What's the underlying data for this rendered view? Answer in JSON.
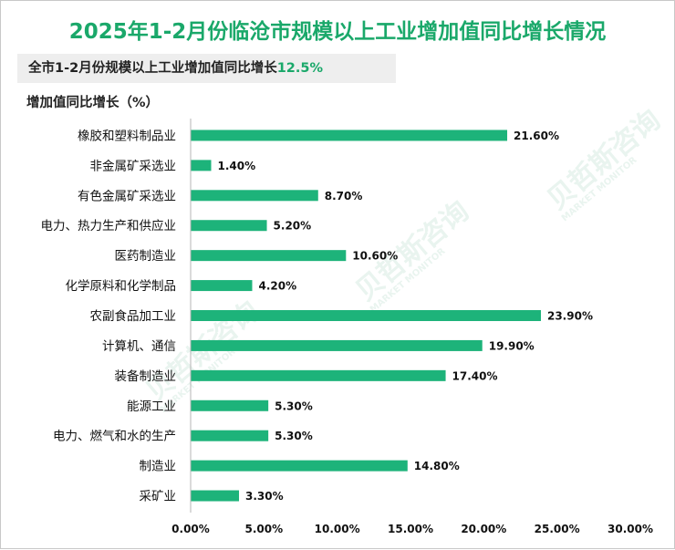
{
  "header": {
    "title": "2025年1-2月份临沧市规模以上工业增加值同比增长情况",
    "subtitle_prefix": "全市1-2月份规模以上工业增加值同比增长",
    "subtitle_value": "12.5%"
  },
  "watermark": {
    "text": "贝哲斯咨询",
    "sub": "MARKET MONITOR"
  },
  "colors": {
    "bar": "#1db37a",
    "accent": "#1aa86a",
    "axis": "#b5b5b5"
  },
  "chart_data": {
    "type": "bar",
    "orientation": "horizontal",
    "ylabel": "增加值同比增长（%）",
    "categories": [
      "橡胶和塑料制品业",
      "非金属矿采选业",
      "有色金属矿采选业",
      "电力、热力生产和供应业",
      "医药制造业",
      "化学原料和化学制品",
      "农副食品加工业",
      "计算机、通信",
      "装备制造业",
      "能源工业",
      "电力、燃气和水的生产",
      "制造业",
      "采矿业"
    ],
    "values": [
      21.6,
      1.4,
      8.7,
      5.2,
      10.6,
      4.2,
      23.9,
      19.9,
      17.4,
      5.3,
      5.3,
      14.8,
      3.3
    ],
    "value_labels": [
      "21.60%",
      "1.40%",
      "8.70%",
      "5.20%",
      "10.60%",
      "4.20%",
      "23.90%",
      "19.90%",
      "17.40%",
      "5.30%",
      "5.30%",
      "14.80%",
      "3.30%"
    ],
    "xlim": [
      0,
      30
    ],
    "xticks": [
      0,
      5,
      10,
      15,
      20,
      25,
      30
    ],
    "xtick_labels": [
      "0.00%",
      "5.00%",
      "10.00%",
      "15.00%",
      "20.00%",
      "25.00%",
      "30.00%"
    ],
    "grid": false
  }
}
